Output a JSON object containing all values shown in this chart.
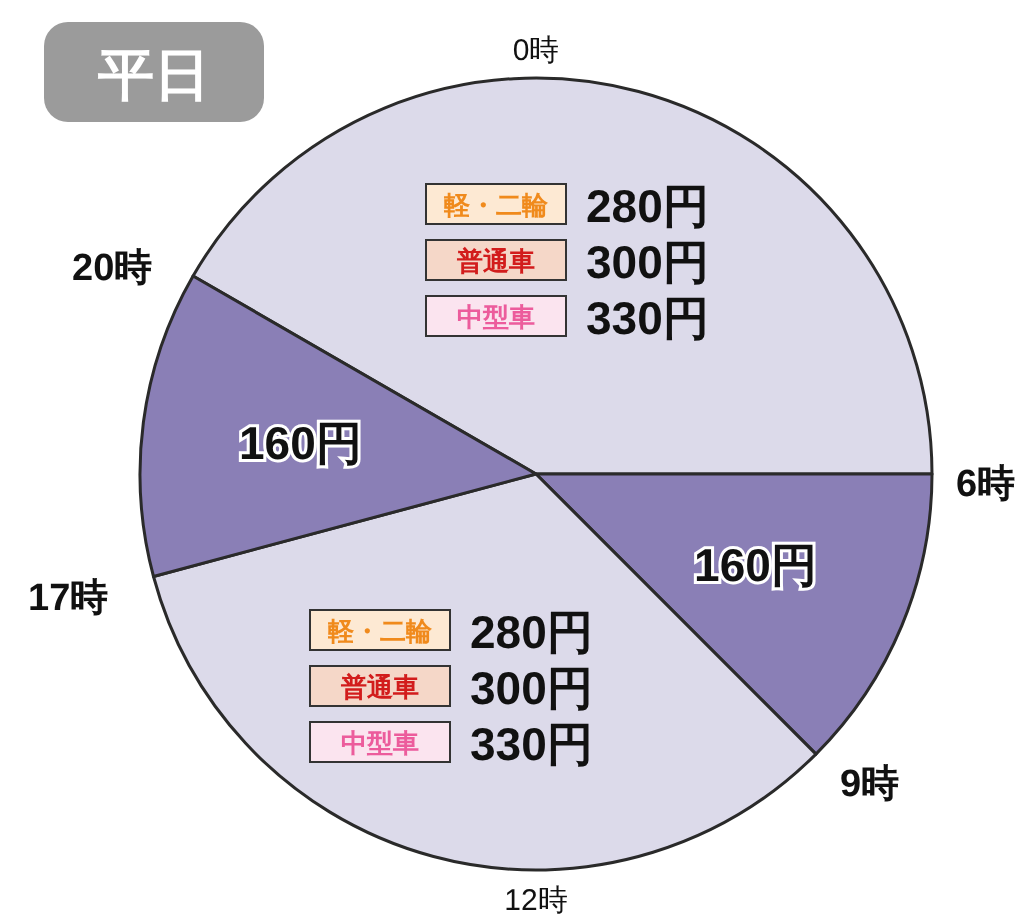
{
  "chart_data": {
    "type": "pie",
    "title": "平日",
    "categories": [
      null,
      null,
      null,
      null
    ],
    "values": [
      41.67,
      12.5,
      33.33,
      12.5
    ],
    "colors": [
      "#dcdaea",
      "#8a7fb6",
      "#dcdaea",
      "#8a7fb6"
    ],
    "annotations": [
      "0時",
      "6時",
      "9時",
      "12時",
      "17時",
      "20時",
      "軽・二輪",
      "280円",
      "普通車",
      "300円",
      "中型車",
      "330円",
      "160円",
      "軽・二輪",
      "280円",
      "普通車",
      "300円",
      "中型車",
      "330円",
      "160円"
    ]
  }
}
